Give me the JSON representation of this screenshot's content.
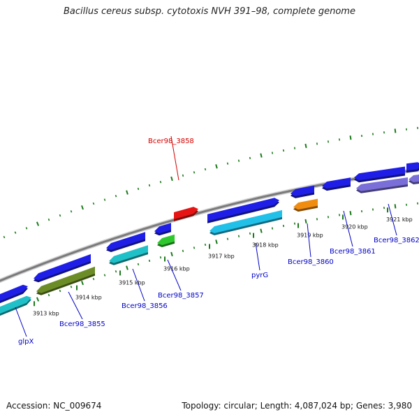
{
  "title": "Bacillus cereus subsp. cytotoxis NVH 391–98, complete genome",
  "accession": "Accession: NC_009674",
  "summary": "Topology: circular; Length: 4,087,024 bp; Genes: 3,980",
  "scale_labels": [
    "3913 kbp",
    "3914 kbp",
    "3915 kbp",
    "3916 kbp",
    "3917 kbp",
    "3918 kbp",
    "3919 kbp",
    "3920 kbp",
    "3921 kbp"
  ],
  "genes": [
    {
      "name": "glpX",
      "strand": "+",
      "color": "#1e1ee6"
    },
    {
      "name": "",
      "strand": "+",
      "color": "#1fc0c8"
    },
    {
      "name": "",
      "strand": "-",
      "color": "#1e1ee6"
    },
    {
      "name": "Bcer98_3855",
      "strand": "-",
      "color": "#6b8c26"
    },
    {
      "name": "",
      "strand": "-",
      "color": "#1e1ee6"
    },
    {
      "name": "Bcer98_3856",
      "strand": "-",
      "color": "#1fc0c8"
    },
    {
      "name": "",
      "strand": "-",
      "color": "#1e1ee6"
    },
    {
      "name": "Bcer98_3857",
      "strand": "-",
      "color": "#2ec82e"
    },
    {
      "name": "Bcer98_3858",
      "strand": "+",
      "color": "#e61414",
      "highlight": true
    },
    {
      "name": "",
      "strand": "+",
      "color": "#1e1ee6"
    },
    {
      "name": "pyrG",
      "strand": "-",
      "color": "#20c0e8"
    },
    {
      "name": "",
      "strand": "-",
      "color": "#1e1ee6"
    },
    {
      "name": "Bcer98_3860",
      "strand": "-",
      "color": "#f08c10"
    },
    {
      "name": "Bcer98_3861",
      "strand": "-",
      "color": "#1e1ee6"
    },
    {
      "name": "",
      "strand": "-",
      "color": "#1e1ee6"
    },
    {
      "name": "Bcer98_3862",
      "strand": "-",
      "color": "#7a6ed8"
    },
    {
      "name": "",
      "strand": "+",
      "color": "#1e1ee6"
    },
    {
      "name": "",
      "strand": "-",
      "color": "#7a6ed8"
    }
  ]
}
